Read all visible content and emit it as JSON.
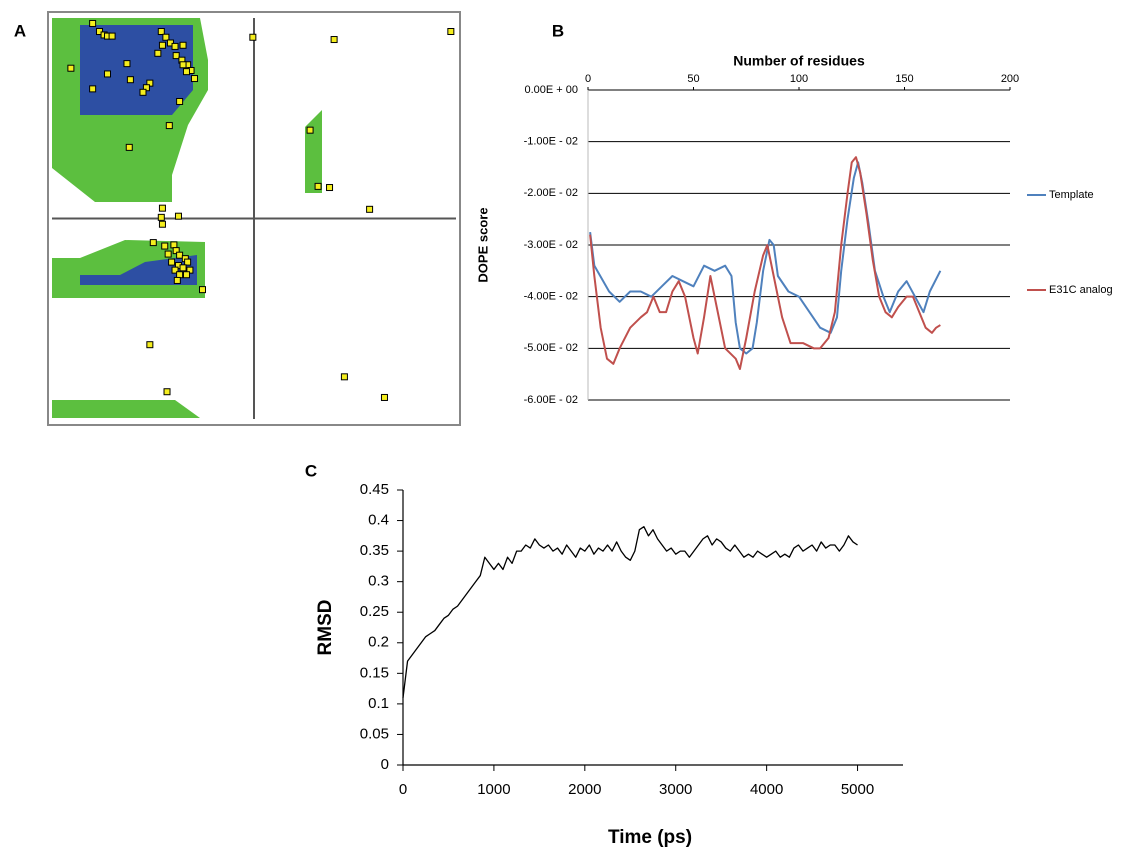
{
  "chart_data": [
    {
      "type": "scatter",
      "panel_label": "A",
      "color": "#f5ee1e",
      "xlim": [
        -180,
        180
      ],
      "ylim": [
        -180,
        180
      ],
      "x": [
        -141,
        -135,
        -131,
        -128,
        -124,
        -81,
        -77,
        -80,
        -73,
        -69,
        -62,
        -84,
        -68,
        -63,
        -58,
        -55,
        -62,
        -59,
        -160,
        -111,
        -128,
        -108,
        -91,
        -94,
        -97,
        -141,
        -52,
        -65,
        -74,
        -109,
        -1,
        70,
        172,
        49,
        56,
        66,
        101,
        -80,
        -81,
        -66,
        -80,
        -88,
        -78,
        -70,
        -68,
        -65,
        -60,
        -72,
        -66,
        -58,
        -69,
        -62,
        -56,
        -65,
        -59,
        -67,
        -75,
        -45,
        -91,
        -76,
        79,
        114
      ],
      "values": [
        170,
        163,
        160,
        159,
        159,
        163,
        158,
        151,
        153,
        150,
        151,
        144,
        142,
        138,
        134,
        129,
        134,
        128,
        131,
        135,
        126,
        121,
        118,
        114,
        110,
        113,
        122,
        102,
        81,
        62,
        158,
        156,
        163,
        77,
        28,
        27,
        8,
        9,
        1,
        2,
        -5,
        -21,
        -24,
        -23,
        -28,
        -32,
        -35,
        -38,
        -41,
        -38,
        -45,
        -43,
        -45,
        -49,
        -49,
        -54,
        -31,
        -62,
        -110,
        -151,
        -138,
        -156
      ]
    },
    {
      "type": "line",
      "panel_label": "B",
      "title": "Number of residues",
      "ylabel": "DOPE score",
      "xlim": [
        0,
        200
      ],
      "xticks": [
        0,
        50,
        100,
        150,
        200
      ],
      "ylim": [
        -0.06,
        0
      ],
      "yticks": [
        {
          "value": 0,
          "label": "0.00E + 00"
        },
        {
          "value": -0.01,
          "label": "-1.00E - 02"
        },
        {
          "value": -0.02,
          "label": "-2.00E - 02"
        },
        {
          "value": -0.03,
          "label": "-3.00E - 02"
        },
        {
          "value": -0.04,
          "label": "-4.00E - 02"
        },
        {
          "value": -0.05,
          "label": "-5.00E - 02"
        },
        {
          "value": -0.06,
          "label": "-6.00E - 02"
        }
      ],
      "grid": true,
      "series": [
        {
          "name": "Template",
          "color": "#4f81bd",
          "x": [
            1,
            3,
            10,
            15,
            20,
            25,
            30,
            35,
            40,
            45,
            50,
            55,
            60,
            65,
            68,
            70,
            72,
            75,
            78,
            80,
            83,
            86,
            88,
            90,
            95,
            100,
            105,
            110,
            115,
            118,
            120,
            123,
            126,
            128,
            130,
            133,
            136,
            140,
            143,
            147,
            151,
            155,
            159,
            162,
            167
          ],
          "values": [
            -0.0275,
            -0.034,
            -0.039,
            -0.041,
            -0.039,
            -0.039,
            -0.04,
            -0.038,
            -0.036,
            -0.037,
            -0.038,
            -0.034,
            -0.035,
            -0.034,
            -0.036,
            -0.045,
            -0.05,
            -0.051,
            -0.05,
            -0.045,
            -0.035,
            -0.029,
            -0.03,
            -0.036,
            -0.039,
            -0.04,
            -0.043,
            -0.046,
            -0.047,
            -0.044,
            -0.035,
            -0.025,
            -0.017,
            -0.014,
            -0.018,
            -0.026,
            -0.035,
            -0.04,
            -0.043,
            -0.039,
            -0.037,
            -0.04,
            -0.043,
            -0.039,
            -0.035
          ]
        },
        {
          "name": "E31C analog",
          "color": "#c0504d",
          "x": [
            1,
            3,
            6,
            9,
            12,
            15,
            20,
            25,
            28,
            31,
            34,
            37,
            40,
            43,
            46,
            50,
            52,
            55,
            58,
            61,
            65,
            70,
            72,
            75,
            79,
            83,
            85,
            88,
            92,
            96,
            102,
            107,
            110,
            114,
            117,
            120,
            123,
            125,
            127,
            129,
            132,
            135,
            138,
            141,
            144,
            147,
            151,
            154,
            157,
            160,
            163,
            165,
            167
          ],
          "values": [
            -0.028,
            -0.036,
            -0.046,
            -0.052,
            -0.053,
            -0.05,
            -0.046,
            -0.044,
            -0.043,
            -0.04,
            -0.043,
            -0.043,
            -0.039,
            -0.037,
            -0.04,
            -0.048,
            -0.051,
            -0.044,
            -0.036,
            -0.042,
            -0.05,
            -0.052,
            -0.054,
            -0.048,
            -0.039,
            -0.032,
            -0.03,
            -0.036,
            -0.044,
            -0.049,
            -0.049,
            -0.05,
            -0.05,
            -0.048,
            -0.043,
            -0.03,
            -0.02,
            -0.014,
            -0.013,
            -0.016,
            -0.024,
            -0.033,
            -0.04,
            -0.043,
            -0.044,
            -0.042,
            -0.04,
            -0.04,
            -0.043,
            -0.046,
            -0.047,
            -0.046,
            -0.0455
          ]
        }
      ]
    },
    {
      "type": "line",
      "panel_label": "C",
      "xlabel": "Time (ps)",
      "ylabel": "RMSD",
      "xlim": [
        0,
        5500
      ],
      "xticks": [
        0,
        1000,
        2000,
        3000,
        4000,
        5000
      ],
      "ylim": [
        0,
        0.45
      ],
      "yticks": [
        0,
        0.05,
        0.1,
        0.15,
        0.2,
        0.25,
        0.3,
        0.35,
        0.4,
        0.45
      ],
      "series": [
        {
          "color": "#000000",
          "x": [
            0,
            50,
            100,
            150,
            200,
            250,
            300,
            350,
            400,
            450,
            500,
            550,
            600,
            650,
            700,
            750,
            800,
            850,
            900,
            950,
            1000,
            1050,
            1100,
            1150,
            1200,
            1250,
            1300,
            1350,
            1400,
            1450,
            1500,
            1550,
            1600,
            1650,
            1700,
            1750,
            1800,
            1850,
            1900,
            1950,
            2000,
            2050,
            2100,
            2150,
            2200,
            2250,
            2300,
            2350,
            2400,
            2450,
            2500,
            2550,
            2600,
            2650,
            2700,
            2750,
            2800,
            2850,
            2900,
            2950,
            3000,
            3050,
            3100,
            3150,
            3200,
            3250,
            3300,
            3350,
            3400,
            3450,
            3500,
            3550,
            3600,
            3650,
            3700,
            3750,
            3800,
            3850,
            3900,
            3950,
            4000,
            4050,
            4100,
            4150,
            4200,
            4250,
            4300,
            4350,
            4400,
            4450,
            4500,
            4550,
            4600,
            4650,
            4700,
            4750,
            4800,
            4850,
            4900,
            4950,
            5000
          ],
          "values": [
            0.11,
            0.17,
            0.18,
            0.19,
            0.2,
            0.21,
            0.215,
            0.22,
            0.23,
            0.24,
            0.245,
            0.255,
            0.26,
            0.27,
            0.28,
            0.29,
            0.3,
            0.31,
            0.34,
            0.33,
            0.32,
            0.33,
            0.32,
            0.34,
            0.33,
            0.35,
            0.35,
            0.36,
            0.355,
            0.37,
            0.36,
            0.355,
            0.36,
            0.35,
            0.355,
            0.345,
            0.36,
            0.35,
            0.34,
            0.355,
            0.35,
            0.36,
            0.345,
            0.355,
            0.35,
            0.36,
            0.35,
            0.365,
            0.35,
            0.34,
            0.335,
            0.35,
            0.385,
            0.39,
            0.375,
            0.385,
            0.37,
            0.36,
            0.35,
            0.355,
            0.345,
            0.35,
            0.35,
            0.34,
            0.35,
            0.36,
            0.37,
            0.375,
            0.36,
            0.37,
            0.365,
            0.355,
            0.35,
            0.36,
            0.35,
            0.34,
            0.345,
            0.34,
            0.35,
            0.345,
            0.34,
            0.345,
            0.35,
            0.34,
            0.345,
            0.34,
            0.355,
            0.36,
            0.35,
            0.355,
            0.36,
            0.35,
            0.365,
            0.355,
            0.36,
            0.36,
            0.35,
            0.36,
            0.375,
            0.365,
            0.36
          ]
        }
      ]
    }
  ]
}
